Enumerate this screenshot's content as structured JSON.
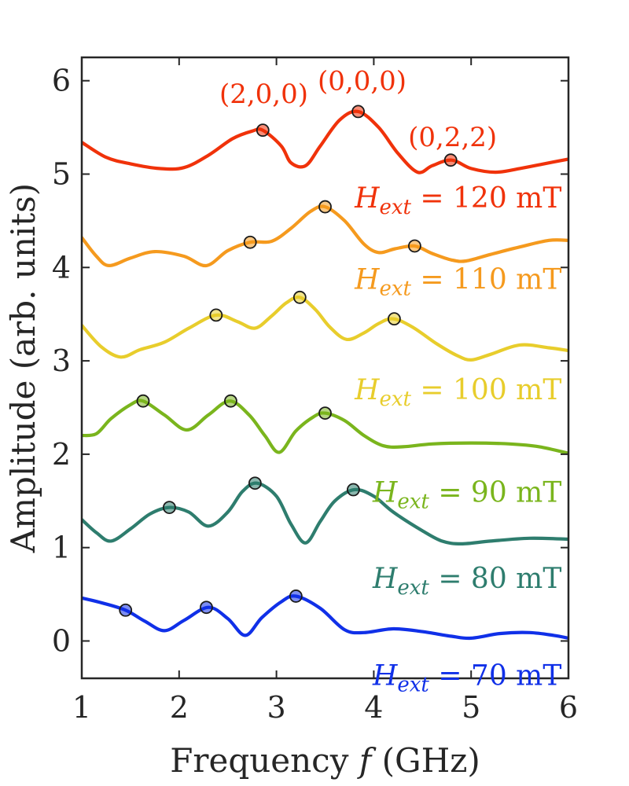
{
  "chart_data": {
    "type": "line",
    "xlabel_prefix": "Frequency",
    "xlabel_var": "f",
    "xlabel_suffix": "(GHz)",
    "ylabel": "Amplitude (arb. units)",
    "xlim": [
      1,
      6
    ],
    "ylim": [
      -0.4,
      6.25
    ],
    "xticks": [
      1,
      2,
      3,
      4,
      5,
      6
    ],
    "yticks": [
      0,
      1,
      2,
      3,
      4,
      5,
      6
    ],
    "grid": false,
    "series": [
      {
        "name": "70 mT",
        "label_var": "H",
        "label_sub": "ext",
        "label_rest": "= 70 mT",
        "color": "#1030e8",
        "points": [
          [
            1.0,
            0.46
          ],
          [
            1.2,
            0.41
          ],
          [
            1.45,
            0.33
          ],
          [
            1.65,
            0.21
          ],
          [
            1.85,
            0.11
          ],
          [
            2.05,
            0.22
          ],
          [
            2.3,
            0.36
          ],
          [
            2.5,
            0.24
          ],
          [
            2.68,
            0.06
          ],
          [
            2.85,
            0.25
          ],
          [
            3.05,
            0.42
          ],
          [
            3.2,
            0.48
          ],
          [
            3.45,
            0.35
          ],
          [
            3.7,
            0.12
          ],
          [
            3.9,
            0.09
          ],
          [
            4.2,
            0.13
          ],
          [
            4.5,
            0.1
          ],
          [
            4.8,
            0.05
          ],
          [
            5.0,
            0.03
          ],
          [
            5.3,
            0.08
          ],
          [
            5.6,
            0.09
          ],
          [
            5.85,
            0.06
          ],
          [
            6.0,
            0.03
          ]
        ],
        "markers": [
          [
            1.45,
            0.33
          ],
          [
            2.28,
            0.36
          ],
          [
            3.2,
            0.48
          ]
        ]
      },
      {
        "name": "80 mT",
        "label_var": "H",
        "label_sub": "ext",
        "label_rest": "= 80 mT",
        "color": "#2e7d6e",
        "points": [
          [
            1.0,
            1.3
          ],
          [
            1.15,
            1.16
          ],
          [
            1.3,
            1.07
          ],
          [
            1.5,
            1.2
          ],
          [
            1.7,
            1.36
          ],
          [
            1.9,
            1.43
          ],
          [
            2.1,
            1.38
          ],
          [
            2.3,
            1.23
          ],
          [
            2.5,
            1.38
          ],
          [
            2.65,
            1.6
          ],
          [
            2.8,
            1.69
          ],
          [
            3.0,
            1.55
          ],
          [
            3.15,
            1.25
          ],
          [
            3.3,
            1.05
          ],
          [
            3.45,
            1.28
          ],
          [
            3.6,
            1.5
          ],
          [
            3.8,
            1.62
          ],
          [
            4.0,
            1.55
          ],
          [
            4.2,
            1.38
          ],
          [
            4.5,
            1.18
          ],
          [
            4.7,
            1.07
          ],
          [
            4.9,
            1.04
          ],
          [
            5.2,
            1.07
          ],
          [
            5.6,
            1.1
          ],
          [
            6.0,
            1.09
          ]
        ],
        "markers": [
          [
            1.9,
            1.43
          ],
          [
            2.78,
            1.69
          ],
          [
            3.79,
            1.62
          ]
        ]
      },
      {
        "name": "90 mT",
        "label_var": "H",
        "label_sub": "ext",
        "label_rest": "= 90 mT",
        "color": "#7ab51d",
        "points": [
          [
            1.0,
            2.2
          ],
          [
            1.15,
            2.22
          ],
          [
            1.3,
            2.38
          ],
          [
            1.5,
            2.53
          ],
          [
            1.63,
            2.57
          ],
          [
            1.85,
            2.42
          ],
          [
            2.08,
            2.26
          ],
          [
            2.3,
            2.42
          ],
          [
            2.52,
            2.57
          ],
          [
            2.72,
            2.42
          ],
          [
            2.88,
            2.2
          ],
          [
            3.03,
            2.02
          ],
          [
            3.2,
            2.25
          ],
          [
            3.38,
            2.4
          ],
          [
            3.5,
            2.44
          ],
          [
            3.7,
            2.36
          ],
          [
            3.9,
            2.2
          ],
          [
            4.1,
            2.09
          ],
          [
            4.3,
            2.08
          ],
          [
            4.6,
            2.11
          ],
          [
            5.0,
            2.12
          ],
          [
            5.4,
            2.11
          ],
          [
            5.7,
            2.08
          ],
          [
            6.0,
            2.01
          ]
        ],
        "markers": [
          [
            1.63,
            2.57
          ],
          [
            2.53,
            2.57
          ],
          [
            3.5,
            2.44
          ]
        ]
      },
      {
        "name": "100 mT",
        "label_var": "H",
        "label_sub": "ext",
        "label_rest": "= 100 mT",
        "color": "#e8cd2c",
        "points": [
          [
            1.0,
            3.38
          ],
          [
            1.2,
            3.15
          ],
          [
            1.4,
            3.04
          ],
          [
            1.6,
            3.12
          ],
          [
            1.85,
            3.2
          ],
          [
            2.1,
            3.35
          ],
          [
            2.38,
            3.49
          ],
          [
            2.6,
            3.42
          ],
          [
            2.78,
            3.35
          ],
          [
            2.95,
            3.48
          ],
          [
            3.1,
            3.62
          ],
          [
            3.24,
            3.68
          ],
          [
            3.4,
            3.55
          ],
          [
            3.55,
            3.36
          ],
          [
            3.72,
            3.23
          ],
          [
            3.9,
            3.3
          ],
          [
            4.05,
            3.4
          ],
          [
            4.2,
            3.45
          ],
          [
            4.4,
            3.36
          ],
          [
            4.65,
            3.18
          ],
          [
            4.85,
            3.06
          ],
          [
            5.0,
            3.01
          ],
          [
            5.2,
            3.07
          ],
          [
            5.5,
            3.17
          ],
          [
            5.8,
            3.14
          ],
          [
            6.0,
            3.11
          ]
        ],
        "markers": [
          [
            2.38,
            3.49
          ],
          [
            3.24,
            3.68
          ],
          [
            4.21,
            3.45
          ]
        ]
      },
      {
        "name": "110 mT",
        "label_var": "H",
        "label_sub": "ext",
        "label_rest": "= 110 mT",
        "color": "#f59a1e",
        "points": [
          [
            1.0,
            4.32
          ],
          [
            1.15,
            4.12
          ],
          [
            1.28,
            4.02
          ],
          [
            1.5,
            4.1
          ],
          [
            1.75,
            4.17
          ],
          [
            2.05,
            4.12
          ],
          [
            2.28,
            4.02
          ],
          [
            2.5,
            4.18
          ],
          [
            2.73,
            4.27
          ],
          [
            2.95,
            4.28
          ],
          [
            3.15,
            4.42
          ],
          [
            3.35,
            4.6
          ],
          [
            3.5,
            4.65
          ],
          [
            3.7,
            4.5
          ],
          [
            3.9,
            4.25
          ],
          [
            4.05,
            4.16
          ],
          [
            4.22,
            4.2
          ],
          [
            4.42,
            4.23
          ],
          [
            4.6,
            4.15
          ],
          [
            4.8,
            4.08
          ],
          [
            4.95,
            4.07
          ],
          [
            5.2,
            4.14
          ],
          [
            5.5,
            4.22
          ],
          [
            5.8,
            4.29
          ],
          [
            6.0,
            4.29
          ]
        ],
        "markers": [
          [
            2.73,
            4.27
          ],
          [
            3.5,
            4.65
          ],
          [
            4.42,
            4.23
          ]
        ]
      },
      {
        "name": "120 mT",
        "label_var": "H",
        "label_sub": "ext",
        "label_rest": "= 120 mT",
        "color": "#f0320a",
        "points": [
          [
            1.0,
            5.34
          ],
          [
            1.25,
            5.18
          ],
          [
            1.5,
            5.11
          ],
          [
            1.8,
            5.06
          ],
          [
            2.05,
            5.07
          ],
          [
            2.3,
            5.2
          ],
          [
            2.55,
            5.38
          ],
          [
            2.75,
            5.46
          ],
          [
            2.86,
            5.47
          ],
          [
            3.05,
            5.3
          ],
          [
            3.15,
            5.12
          ],
          [
            3.3,
            5.09
          ],
          [
            3.45,
            5.3
          ],
          [
            3.65,
            5.58
          ],
          [
            3.84,
            5.67
          ],
          [
            4.05,
            5.5
          ],
          [
            4.25,
            5.22
          ],
          [
            4.45,
            5.02
          ],
          [
            4.6,
            5.09
          ],
          [
            4.8,
            5.15
          ],
          [
            5.0,
            5.06
          ],
          [
            5.25,
            5.02
          ],
          [
            5.5,
            5.06
          ],
          [
            5.75,
            5.11
          ],
          [
            6.0,
            5.16
          ]
        ],
        "markers": [
          [
            2.86,
            5.47
          ],
          [
            3.84,
            5.67
          ],
          [
            4.79,
            5.15
          ]
        ]
      }
    ],
    "annotations": [
      {
        "text": "(2,0,0)",
        "x": 2.87,
        "y": 5.76
      },
      {
        "text": "(0,0,0)",
        "x": 3.88,
        "y": 5.9
      },
      {
        "text": "(0,2,2)",
        "x": 4.81,
        "y": 5.3
      }
    ],
    "annotation_color": "#f0320a",
    "label_anchor_x": 5.93,
    "label_offsets_y": [
      -0.18,
      -0.2,
      -0.2,
      -0.2,
      -0.2,
      -0.2
    ]
  }
}
